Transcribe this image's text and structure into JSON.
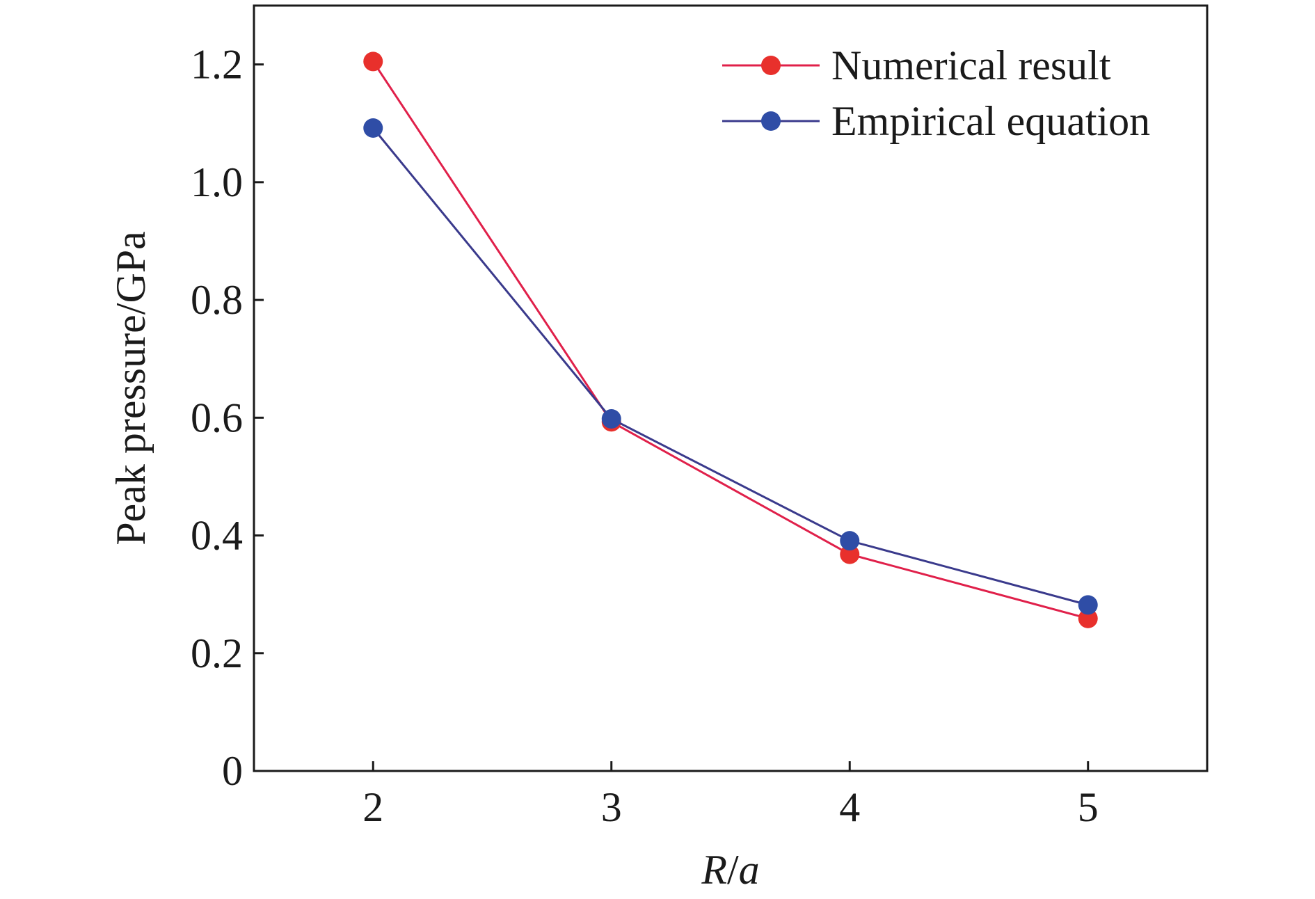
{
  "chart_data": {
    "type": "line",
    "xlabel": "R/a",
    "xlabel_parts": {
      "var1": "R",
      "sep": "/",
      "var2": "a"
    },
    "ylabel": "Peak pressure/GPa",
    "x": [
      2,
      3,
      4,
      5
    ],
    "xlim": [
      1.5,
      5.5
    ],
    "ylim": [
      0,
      1.3
    ],
    "x_ticks": [
      2,
      3,
      4,
      5
    ],
    "x_tick_labels": [
      "2",
      "3",
      "4",
      "5"
    ],
    "y_ticks": [
      0,
      0.2,
      0.4,
      0.6,
      0.8,
      1.0,
      1.2
    ],
    "y_tick_labels": [
      "0",
      "0.2",
      "0.4",
      "0.6",
      "0.8",
      "1.0",
      "1.2"
    ],
    "grid": false,
    "legend_position": "top-right",
    "series": [
      {
        "name": "Numerical result",
        "values": [
          1.205,
          0.593,
          0.368,
          0.259
        ],
        "line_color": "#e0204a",
        "marker_color": "#e8302c"
      },
      {
        "name": "Empirical equation",
        "values": [
          1.092,
          0.598,
          0.391,
          0.282
        ],
        "line_color": "#3a3a8c",
        "marker_color": "#2f4da6"
      }
    ]
  }
}
